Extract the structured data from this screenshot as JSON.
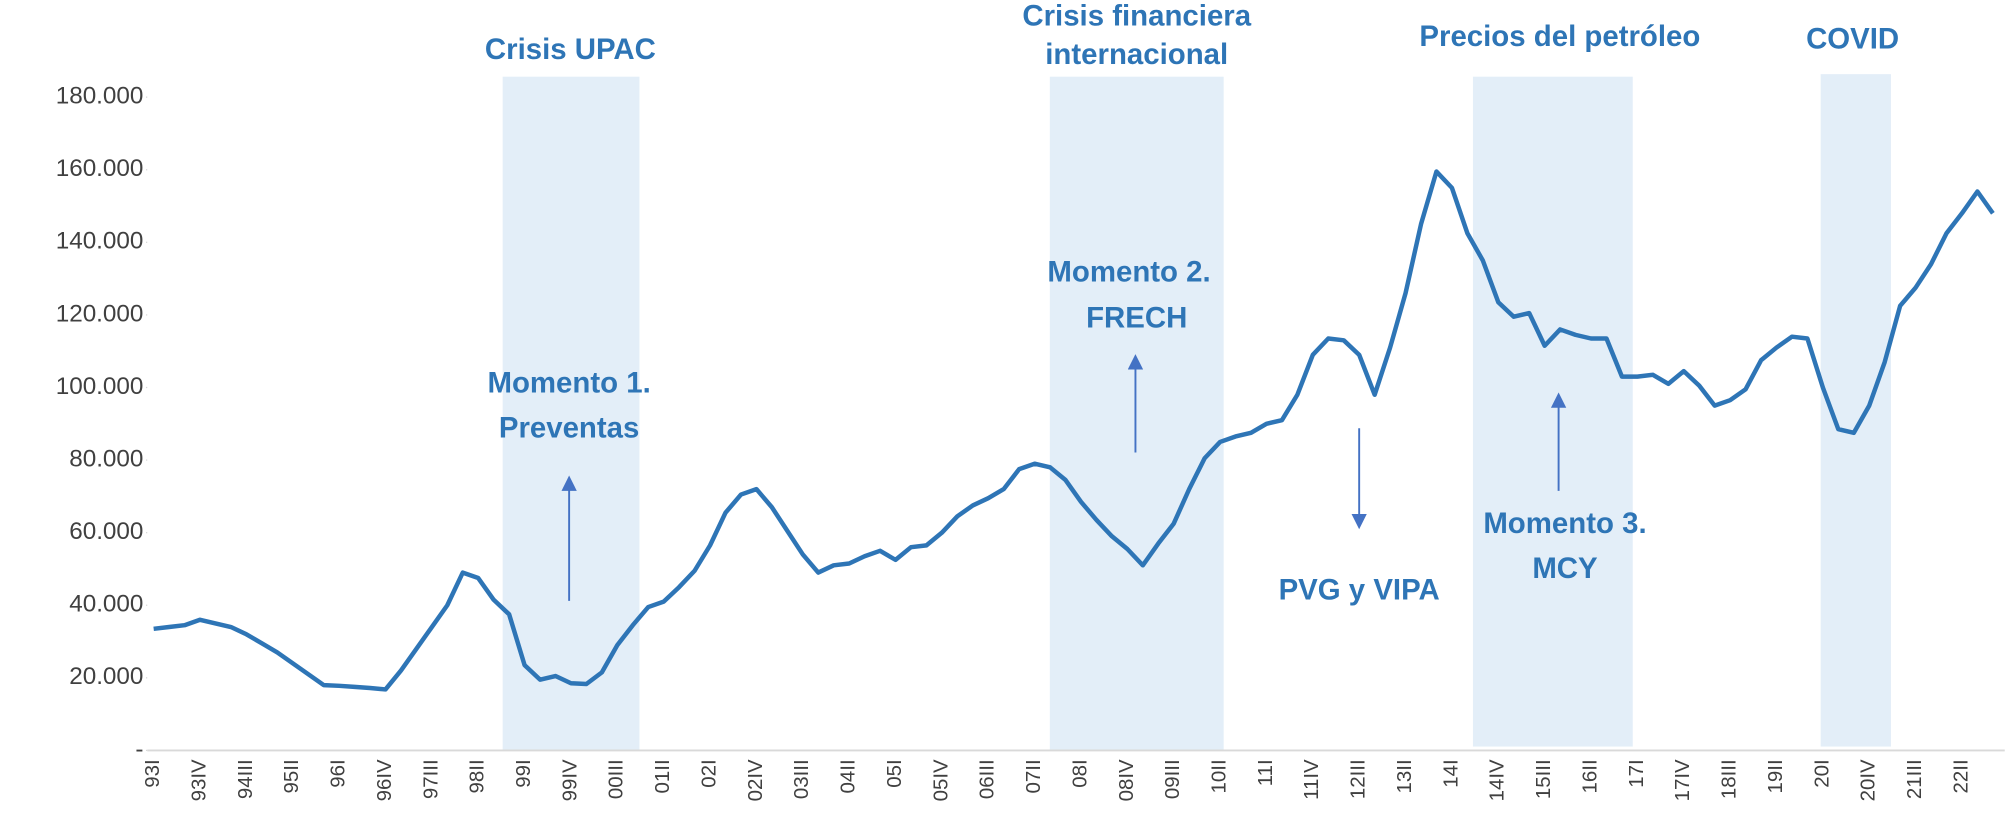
{
  "chart_data": {
    "type": "line",
    "categories": [
      "93I",
      null,
      null,
      "93IV",
      null,
      null,
      "94III",
      null,
      null,
      "95II",
      null,
      null,
      "96I",
      null,
      null,
      "96IV",
      null,
      null,
      "97III",
      null,
      null,
      "98II",
      null,
      null,
      "99I",
      null,
      null,
      "99IV",
      null,
      null,
      "00III",
      null,
      null,
      "01II",
      null,
      null,
      "02I",
      null,
      null,
      "02IV",
      null,
      null,
      "03III",
      null,
      null,
      "04II",
      null,
      null,
      "05I",
      null,
      null,
      "05IV",
      null,
      null,
      "06III",
      null,
      null,
      "07II",
      null,
      null,
      "08I",
      null,
      null,
      "08IV",
      null,
      null,
      "09III",
      null,
      null,
      "10II",
      null,
      null,
      "11I",
      null,
      null,
      "11IV",
      null,
      null,
      "12III",
      null,
      null,
      "13II",
      null,
      null,
      "14I",
      null,
      null,
      "14IV",
      null,
      null,
      "15III",
      null,
      null,
      "16II",
      null,
      null,
      "17I",
      null,
      null,
      "17IV",
      null,
      null,
      "18III",
      null,
      null,
      "19II",
      null,
      null,
      "20I",
      null,
      null,
      "20IV",
      null,
      null,
      "21III",
      null,
      null,
      "22II",
      null,
      null
    ],
    "series": [
      {
        "color": "#2e75b6",
        "values": [
          33500,
          34000,
          34500,
          36000,
          35000,
          34000,
          32000,
          29500,
          27000,
          24000,
          21000,
          18000,
          17800,
          17500,
          17200,
          16800,
          22000,
          28000,
          34000,
          40000,
          49000,
          47500,
          41500,
          37500,
          23500,
          19500,
          20500,
          18500,
          18300,
          21500,
          29000,
          34500,
          39500,
          41000,
          45000,
          49500,
          56500,
          65500,
          70500,
          72000,
          67000,
          60500,
          54000,
          49000,
          51000,
          51500,
          53500,
          55000,
          52500,
          56000,
          56500,
          60000,
          64500,
          67500,
          69500,
          72000,
          77500,
          79000,
          78000,
          74500,
          68500,
          63500,
          59000,
          55500,
          51000,
          57000,
          62500,
          72000,
          80500,
          85000,
          86500,
          87500,
          90000,
          91000,
          98000,
          109000,
          113500,
          113000,
          109000,
          98000,
          111000,
          126000,
          145000,
          159500,
          155000,
          142500,
          135000,
          123500,
          119500,
          120500,
          111500,
          116000,
          114500,
          113500,
          113500,
          103000,
          103000,
          103500,
          101000,
          104500,
          100500,
          95000,
          96500,
          99500,
          107500,
          111000,
          114000,
          113500,
          100000,
          88500,
          87500,
          95000,
          107000,
          122500,
          127500,
          134000,
          142500,
          148000,
          154000,
          148000
        ]
      }
    ],
    "ylim": [
      0,
      180000
    ],
    "yticks": [
      {
        "value": 0,
        "label": "-"
      },
      {
        "value": 20000,
        "label": "20.000"
      },
      {
        "value": 40000,
        "label": "40.000"
      },
      {
        "value": 60000,
        "label": "60.000"
      },
      {
        "value": 80000,
        "label": "80.000"
      },
      {
        "value": 100000,
        "label": "100.000"
      },
      {
        "value": 120000,
        "label": "120.000"
      },
      {
        "value": 140000,
        "label": "140.000"
      },
      {
        "value": 160000,
        "label": "160.000"
      },
      {
        "value": 180000,
        "label": "180.000"
      }
    ],
    "annotations": [
      {
        "text": [
          "Crisis UPAC"
        ]
      },
      {
        "text": [
          "Crisis financiera",
          "internacional"
        ]
      },
      {
        "text": [
          "Precios del petróleo"
        ]
      },
      {
        "text": [
          "COVID"
        ]
      },
      {
        "text": [
          "Momento 1.",
          "Preventas"
        ]
      },
      {
        "text": [
          "Momento 2.",
          "FRECH"
        ]
      },
      {
        "text": [
          "PVG y VIPA"
        ]
      },
      {
        "text": [
          "Momento  3.",
          "MCY"
        ]
      }
    ]
  }
}
